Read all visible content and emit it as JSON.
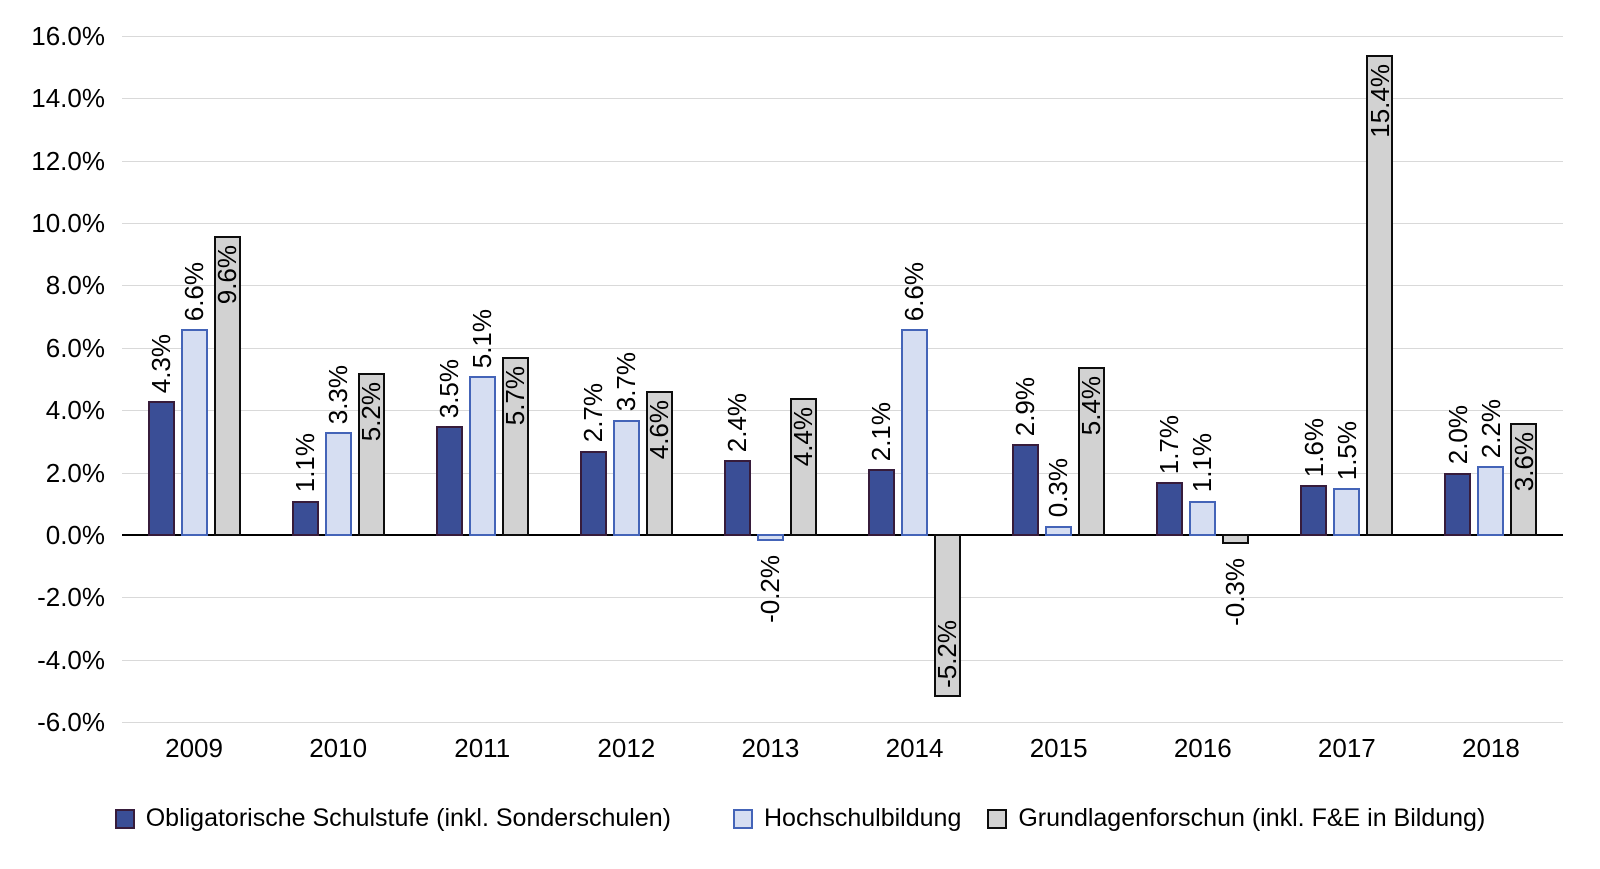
{
  "chart_data": {
    "type": "bar",
    "title": "",
    "categories": [
      "2009",
      "2010",
      "2011",
      "2012",
      "2013",
      "2014",
      "2015",
      "2016",
      "2017",
      "2018"
    ],
    "series": [
      {
        "name": "Obligatorische Schulstufe (inkl. Sonderschulen)",
        "fill": "#3A4E96",
        "border": "#371C3B",
        "values": [
          4.3,
          1.1,
          3.5,
          2.7,
          2.4,
          2.1,
          2.9,
          1.7,
          1.6,
          2.0
        ],
        "labels": [
          "4.3%",
          "1.1%",
          "3.5%",
          "2.7%",
          "2.4%",
          "2.1%",
          "2.9%",
          "1.7%",
          "1.6%",
          "2.0%"
        ]
      },
      {
        "name": "Hochschulbildung",
        "fill": "#D6DEF2",
        "border": "#4464B8",
        "values": [
          6.6,
          3.3,
          5.1,
          3.7,
          -0.2,
          6.6,
          0.3,
          1.1,
          1.5,
          2.2
        ],
        "labels": [
          "6.6%",
          "3.3%",
          "5.1%",
          "3.7%",
          "-0.2%",
          "6.6%",
          "0.3%",
          "1.1%",
          "1.5%",
          "2.2%"
        ]
      },
      {
        "name": "Grundlagenforschun (inkl. F&E in Bildung)",
        "fill": "#D2D2D2",
        "border": "#0D0D0D",
        "values": [
          9.6,
          5.2,
          5.7,
          4.6,
          4.4,
          -5.2,
          5.4,
          -0.3,
          15.4,
          3.6
        ],
        "labels": [
          "9.6%",
          "5.2%",
          "5.7%",
          "4.6%",
          "4.4%",
          "-5.2%",
          "5.4%",
          "-0.3%",
          "15.4%",
          "3.6%"
        ]
      }
    ],
    "ylim": [
      -6,
      16
    ],
    "ytick_step": 2,
    "yticks": [
      16,
      14,
      12,
      10,
      8,
      6,
      4,
      2,
      0,
      -2,
      -4,
      -6
    ],
    "ytick_labels": [
      "16.0%",
      "14.0%",
      "12.0%",
      "10.0%",
      "8.0%",
      "6.0%",
      "4.0%",
      "2.0%",
      "0.0%",
      "-2.0%",
      "-4.0%",
      "-6.0%"
    ],
    "grid": true,
    "legend_position": "bottom",
    "colors": {
      "gridline": "#D9D9D9",
      "axis": "#000000",
      "text": "#000000",
      "background": "#FFFFFF"
    }
  }
}
